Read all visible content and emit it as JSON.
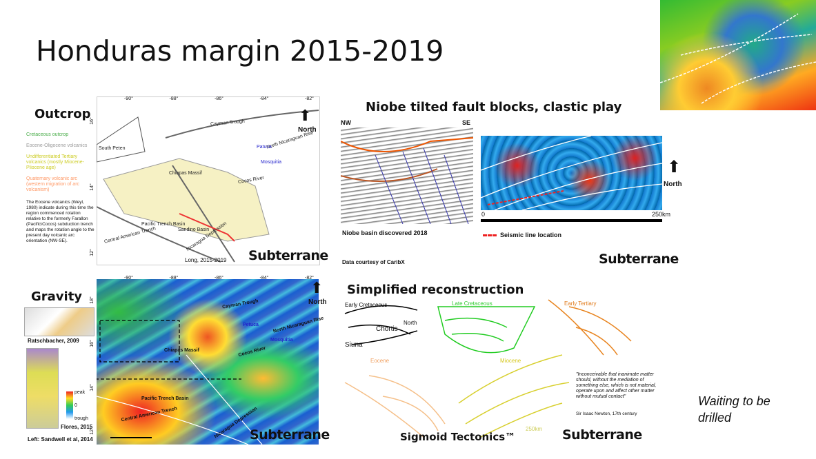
{
  "title": "Honduras margin 2015-2019",
  "outcrop": {
    "heading": "Outcrop",
    "legend": [
      "Cretaceous outcrop",
      "Eocene-Oligocene volcanics",
      "Undifferentiated Tertiary volcanics (mostly Miocene-Pliocene age)",
      "Quaternary volcanic arc (western migration of arc volcanism)"
    ],
    "note": "The Eocene volcanics (Weyl, 1980) indicate during this time the region commenced rotation relative to the formerly Farallon (Pacific\\Cocos) subduction trench and maps the rotation angle to the present day volcanic arc orientation (NW-SE).",
    "lon_ticks": [
      "-90°",
      "-88°",
      "-86°",
      "-84°",
      "-82°"
    ],
    "lat_ticks": [
      "16°",
      "14°",
      "12°"
    ],
    "map_labels": [
      "Cayman Trough",
      "North Nicaraguan Rise",
      "Patuca",
      "Mosquitia",
      "Chiapas Massif",
      "Cocos River",
      "Pacific Trench Basin",
      "Central American Trench",
      "Nicaragua Depression",
      "Sandino Basin",
      "South Peten"
    ],
    "north": "North",
    "credit": "Long, 2015-2019",
    "logo": "Subterrane"
  },
  "niobe": {
    "heading": "Niobe tilted fault blocks, clastic play",
    "nw": "NW",
    "se": "SE",
    "caption": "Niobe basin discovered 2018",
    "scale_start": "0",
    "scale_end": "250km",
    "legend": "Seismic line location",
    "north": "North",
    "credit": "Data courtesy of CaribX",
    "logo": "Subterrane"
  },
  "gravity": {
    "heading": "Gravity",
    "inset1": "Ratschbacher, 2009",
    "inset2": "Flores, 2015",
    "colorbar": [
      "peak",
      "0",
      "trough"
    ],
    "credit": "Left: Sandwell et al, 2014",
    "lon_ticks": [
      "-90°",
      "-88°",
      "-86°",
      "-84°",
      "-82°"
    ],
    "lat_ticks": [
      "18°",
      "16°",
      "14°",
      "12°"
    ],
    "map_labels": [
      "Cayman Trough",
      "North Nicaraguan Rise",
      "Petuca",
      "Mosquitia",
      "Chiapas Massif",
      "Cocos River",
      "Pacific Trench Basin",
      "Central American Trench",
      "Nicaragua Depression"
    ],
    "north": "North",
    "logo": "Subterrane"
  },
  "reconstruction": {
    "heading": "Simplified reconstruction",
    "stages": [
      "Early Cretaceous",
      "Late Cretaceous",
      "Early Tertiary",
      "Eocene",
      "Miocene"
    ],
    "blocks": [
      "Chortis",
      "Siuna",
      "North"
    ],
    "quote": "\"Inconceivable that inanimate matter should, without the mediation of something else, which is not material, operate upon and affect other matter without mutual contact\"",
    "quote_author": "Sir Isaac Newton, 17th century",
    "footer": "Sigmoid Tectonics™",
    "scale": "250km",
    "logo": "Subterrane"
  },
  "status": "Waiting to be drilled"
}
